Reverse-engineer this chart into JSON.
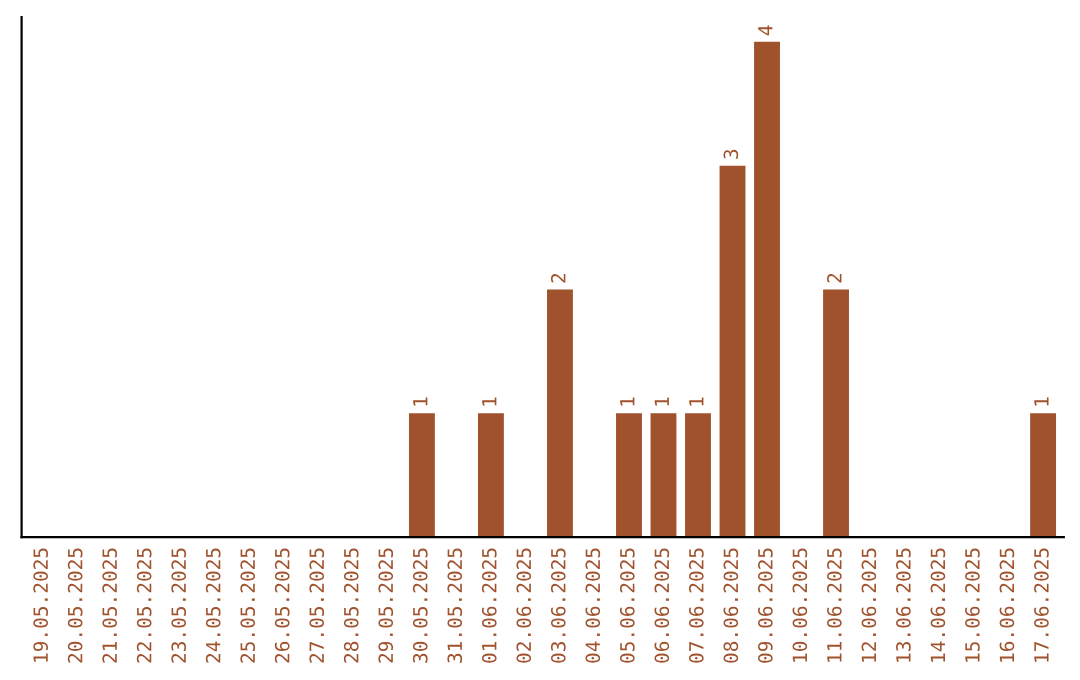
{
  "chart_data": {
    "type": "bar",
    "categories": [
      "19.05.2025",
      "20.05.2025",
      "21.05.2025",
      "22.05.2025",
      "23.05.2025",
      "24.05.2025",
      "25.05.2025",
      "26.05.2025",
      "27.05.2025",
      "28.05.2025",
      "29.05.2025",
      "30.05.2025",
      "31.05.2025",
      "01.06.2025",
      "02.06.2025",
      "03.06.2025",
      "04.06.2025",
      "05.06.2025",
      "06.06.2025",
      "07.06.2025",
      "08.06.2025",
      "09.06.2025",
      "10.06.2025",
      "11.06.2025",
      "12.06.2025",
      "13.06.2025",
      "14.06.2025",
      "15.06.2025",
      "16.06.2025",
      "17.06.2025"
    ],
    "values": [
      0,
      0,
      0,
      0,
      0,
      0,
      0,
      0,
      0,
      0,
      0,
      1,
      0,
      1,
      0,
      2,
      0,
      1,
      1,
      1,
      3,
      4,
      0,
      2,
      0,
      0,
      0,
      0,
      0,
      1
    ],
    "value_labels": [
      null,
      null,
      null,
      null,
      null,
      null,
      null,
      null,
      null,
      null,
      null,
      "1",
      null,
      "1",
      null,
      "2",
      null,
      "1",
      "1",
      "1",
      "3",
      "4",
      null,
      "2",
      null,
      null,
      null,
      null,
      null,
      "1"
    ],
    "color": "#a0522d",
    "tick_labels": "x",
    "grid": false,
    "legend": false
  }
}
